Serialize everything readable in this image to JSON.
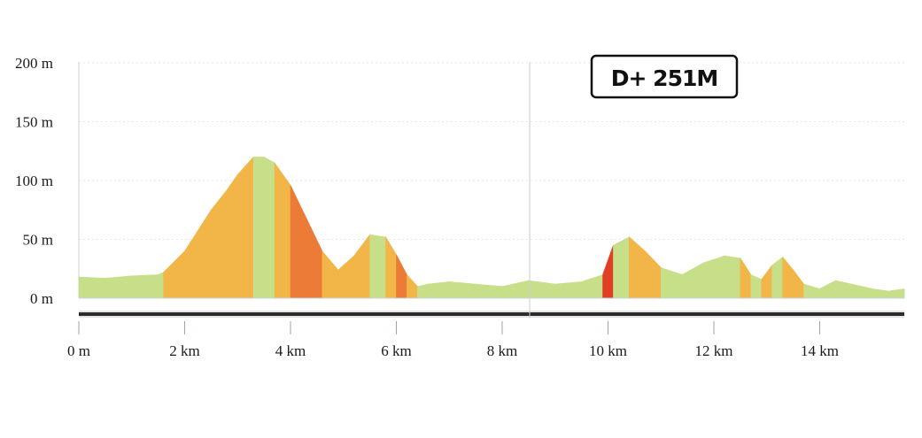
{
  "chart_data": {
    "type": "area",
    "title": "",
    "xlabel": "",
    "ylabel": "",
    "x_unit": "km",
    "y_unit": "m",
    "xlim": [
      0,
      15.6
    ],
    "ylim": [
      0,
      200
    ],
    "x_ticks": [
      "0 m",
      "2 km",
      "4 km",
      "6 km",
      "8 km",
      "10 km",
      "12 km",
      "14 km"
    ],
    "y_ticks": [
      "0 m",
      "50 m",
      "100 m",
      "150 m",
      "200 m"
    ],
    "annotation": "D+ 251M",
    "grid": true,
    "x": [
      0,
      0.5,
      1.0,
      1.5,
      1.6,
      2.0,
      2.5,
      2.8,
      3.0,
      3.3,
      3.5,
      3.7,
      4.0,
      4.3,
      4.6,
      4.9,
      5.2,
      5.5,
      5.8,
      6.0,
      6.2,
      6.4,
      6.6,
      7.0,
      7.5,
      8.0,
      8.5,
      9.0,
      9.5,
      9.9,
      10.1,
      10.4,
      10.7,
      11.0,
      11.4,
      11.8,
      12.2,
      12.5,
      12.7,
      12.9,
      13.1,
      13.3,
      13.5,
      13.7,
      14.0,
      14.3,
      14.6,
      15.0,
      15.3,
      15.6
    ],
    "y": [
      18,
      17,
      19,
      20,
      22,
      40,
      75,
      92,
      105,
      120,
      120,
      115,
      96,
      68,
      40,
      24,
      36,
      54,
      52,
      37,
      20,
      10,
      12,
      14,
      12,
      10,
      15,
      12,
      14,
      20,
      45,
      52,
      40,
      26,
      20,
      30,
      36,
      34,
      20,
      16,
      28,
      35,
      24,
      12,
      8,
      15,
      12,
      8,
      6,
      8
    ],
    "steepness_colors": {
      "gentle": "#c8df8a",
      "moderate": "#f2b547",
      "steep": "#ec7b37",
      "very_steep": "#df3f25"
    }
  }
}
